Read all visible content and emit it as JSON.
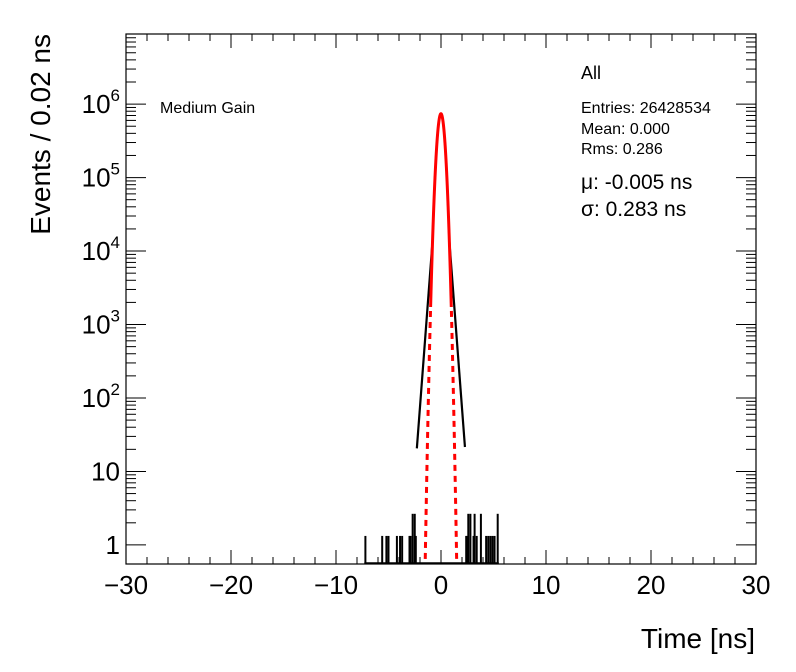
{
  "chart_data": {
    "type": "histogram",
    "xlabel": "Time [ns]",
    "ylabel": "Events / 0.02 ns",
    "yscale": "log",
    "xlim": [
      -30,
      30
    ],
    "ylim": [
      0.55,
      9000000
    ],
    "x_ticks": [
      -30,
      -20,
      -10,
      0,
      10,
      20,
      30
    ],
    "x_tick_labels": [
      "−30",
      "−20",
      "−10",
      "0",
      "10",
      "20",
      "30"
    ],
    "y_ticks": [
      1,
      10,
      100,
      1000,
      10000,
      100000,
      1000000
    ],
    "y_tick_labels": [
      {
        "base": "1",
        "exp": ""
      },
      {
        "base": "10",
        "exp": ""
      },
      {
        "base": "10",
        "exp": "2"
      },
      {
        "base": "10",
        "exp": "3"
      },
      {
        "base": "10",
        "exp": "4"
      },
      {
        "base": "10",
        "exp": "5"
      },
      {
        "base": "10",
        "exp": "6"
      }
    ],
    "label_top_left": "Medium Gain",
    "stats": {
      "title": "All",
      "entries": "Entries: 26428534",
      "mean": "Mean: 0.000",
      "rms": "Rms: 0.286",
      "mu": "μ: -0.005 ns",
      "sigma": "σ: 0.283 ns"
    },
    "fit": {
      "function": "gaussian",
      "mu": -0.005,
      "sigma": 0.283,
      "peak": 740000,
      "color": "#ff0000"
    },
    "histogram": {
      "color": "#000000",
      "outlier_bins": [
        {
          "x": -7.2,
          "y": 1
        },
        {
          "x": -5.6,
          "y": 1
        },
        {
          "x": -5.2,
          "y": 1
        },
        {
          "x": -5.0,
          "y": 1
        },
        {
          "x": -4.2,
          "y": 1
        },
        {
          "x": -3.9,
          "y": 1
        },
        {
          "x": -3.7,
          "y": 1
        },
        {
          "x": -3.0,
          "y": 1
        },
        {
          "x": -2.9,
          "y": 1
        },
        {
          "x": -2.7,
          "y": 2
        },
        {
          "x": -2.5,
          "y": 2
        },
        {
          "x": -2.4,
          "y": 1
        },
        {
          "x": 2.4,
          "y": 1
        },
        {
          "x": 2.5,
          "y": 1
        },
        {
          "x": 2.6,
          "y": 2
        },
        {
          "x": 2.8,
          "y": 2
        },
        {
          "x": 3.1,
          "y": 1
        },
        {
          "x": 3.2,
          "y": 2
        },
        {
          "x": 3.4,
          "y": 1
        },
        {
          "x": 3.8,
          "y": 2
        },
        {
          "x": 4.3,
          "y": 1
        },
        {
          "x": 4.5,
          "y": 1
        },
        {
          "x": 4.7,
          "y": 1
        },
        {
          "x": 4.9,
          "y": 1
        },
        {
          "x": 5.1,
          "y": 1
        },
        {
          "x": 5.4,
          "y": 2
        }
      ]
    }
  }
}
